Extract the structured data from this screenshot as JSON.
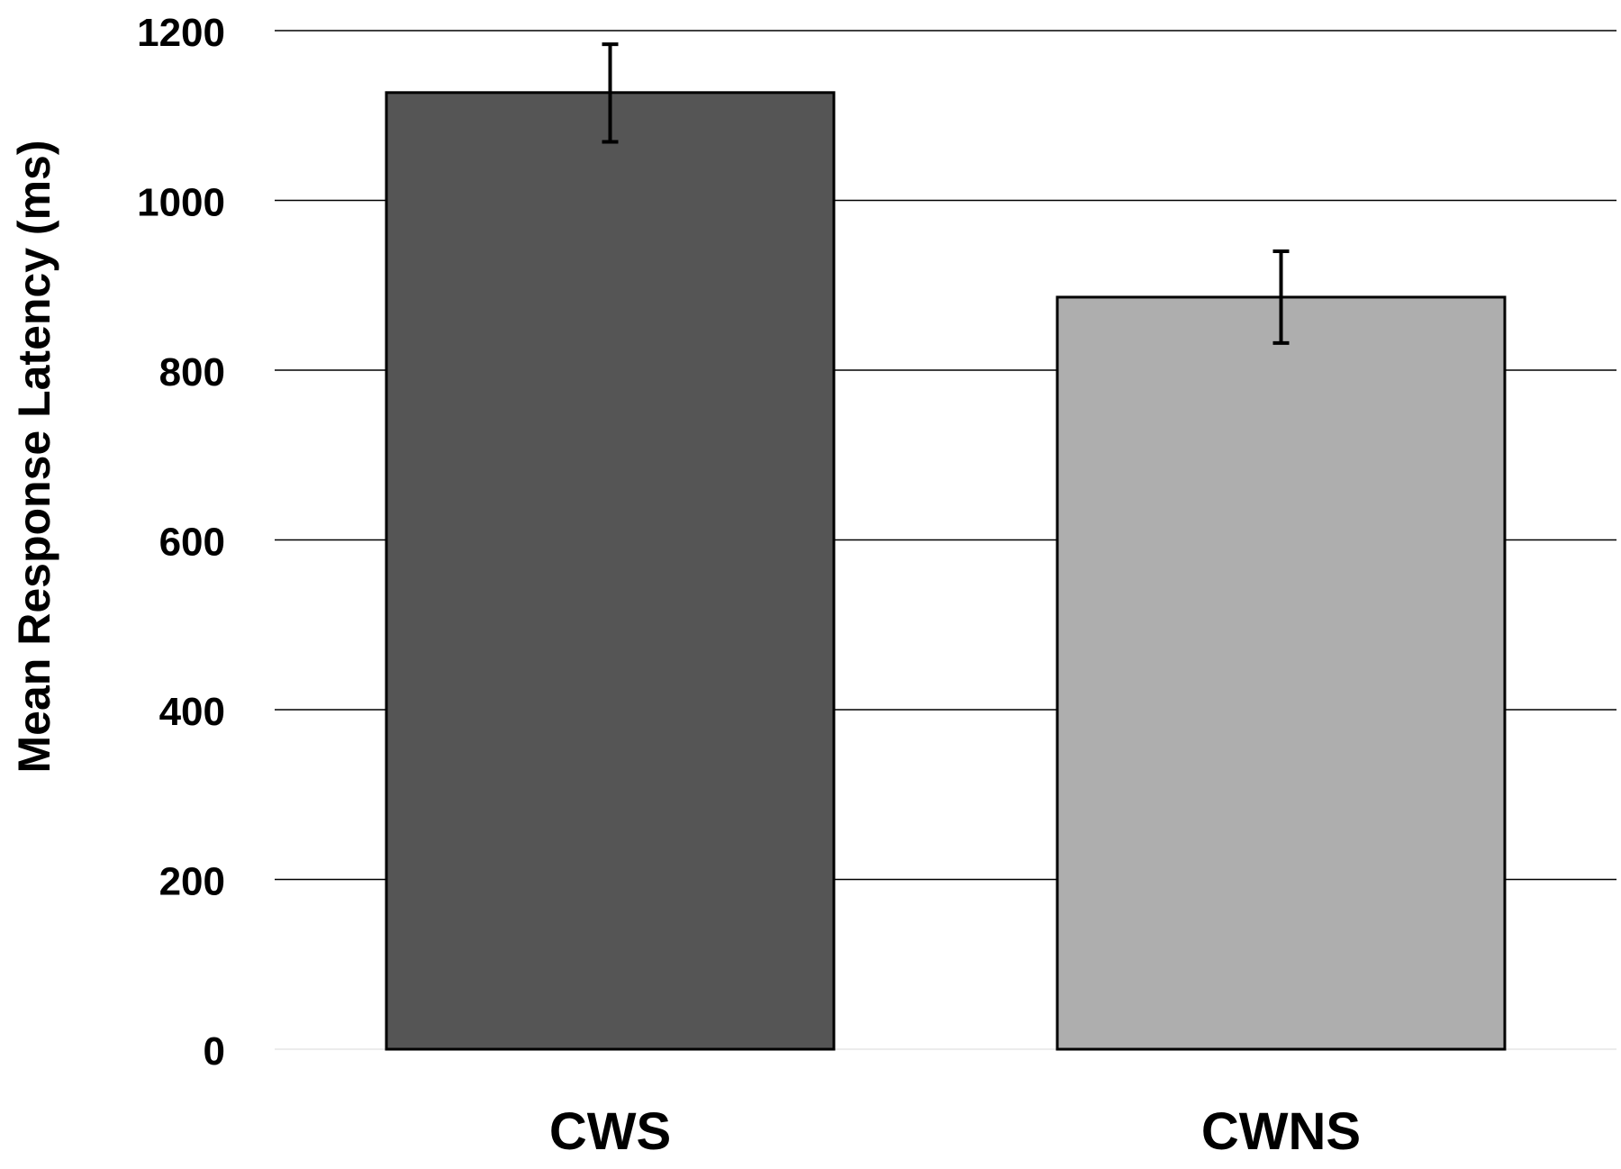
{
  "chart_data": {
    "type": "bar",
    "title": "",
    "xlabel": "",
    "ylabel": "Mean Response Latency (ms)",
    "ylim": [
      0,
      1200
    ],
    "yticks": [
      "0",
      "200",
      "400",
      "600",
      "800",
      "1000",
      "1200"
    ],
    "grid": true,
    "legend": "none",
    "categories": [
      "CWS",
      "CWNS"
    ],
    "values": [
      1127,
      886
    ],
    "error_bars": [
      {
        "lower": 1069,
        "upper": 1184
      },
      {
        "lower": 832,
        "upper": 940
      }
    ],
    "colors": [
      "#555555",
      "#aeaeae"
    ]
  }
}
